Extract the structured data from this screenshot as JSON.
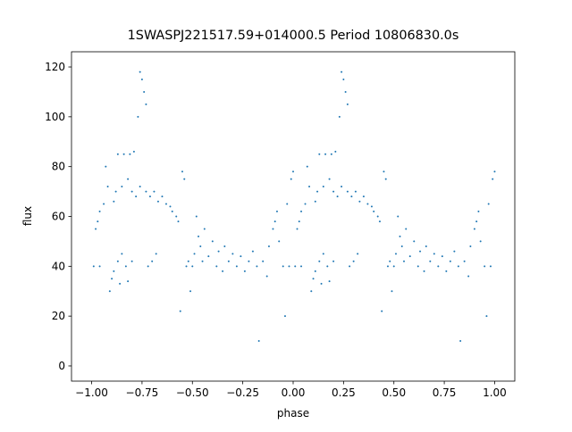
{
  "chart_data": {
    "type": "scatter",
    "title": "1SWASPJ221517.59+014000.5 Period 10806830.0s",
    "x_label": "phase",
    "y_label": "flux",
    "xlim": [
      -1.1,
      1.1
    ],
    "ylim": [
      -6.1,
      126.1
    ],
    "xticks": [
      {
        "value": -1.0,
        "label": "−1.00"
      },
      {
        "value": -0.75,
        "label": "−0.75"
      },
      {
        "value": -0.5,
        "label": "−0.50"
      },
      {
        "value": -0.25,
        "label": "−0.25"
      },
      {
        "value": 0.0,
        "label": "0.00"
      },
      {
        "value": 0.25,
        "label": "0.25"
      },
      {
        "value": 0.5,
        "label": "0.50"
      },
      {
        "value": 0.75,
        "label": "0.75"
      },
      {
        "value": 1.0,
        "label": "1.00"
      }
    ],
    "yticks": [
      0,
      20,
      40,
      60,
      80,
      100,
      120
    ],
    "grid": false,
    "series": [
      {
        "color": "#1f77b4",
        "x": [
          -0.99,
          -0.98,
          -0.97,
          -0.96,
          -0.96,
          -0.94,
          -0.93,
          -0.92,
          -0.91,
          -0.9,
          -0.89,
          -0.89,
          -0.88,
          -0.87,
          -0.87,
          -0.86,
          -0.85,
          -0.85,
          -0.84,
          -0.83,
          -0.82,
          -0.82,
          -0.81,
          -0.8,
          -0.8,
          -0.79,
          -0.78,
          -0.77,
          -0.76,
          -0.76,
          -0.75,
          -0.74,
          -0.73,
          -0.73,
          -0.72,
          -0.71,
          -0.7,
          -0.69,
          -0.68,
          -0.67,
          -0.65,
          -0.63,
          -0.61,
          -0.6,
          -0.58,
          -0.57,
          -0.56,
          -0.55,
          -0.54,
          -0.53,
          -0.52,
          -0.51,
          -0.5,
          -0.49,
          -0.48,
          -0.47,
          -0.46,
          -0.45,
          -0.44,
          -0.42,
          -0.4,
          -0.38,
          -0.37,
          -0.35,
          -0.34,
          -0.32,
          -0.3,
          -0.28,
          -0.26,
          -0.24,
          -0.22,
          -0.2,
          -0.18,
          -0.17,
          -0.15,
          -0.13,
          -0.12,
          -0.1,
          -0.09,
          -0.08,
          -0.07,
          -0.05,
          -0.04,
          -0.03,
          -0.02,
          -0.01,
          0.0,
          0.01,
          0.02,
          0.03,
          0.04,
          0.04,
          0.06,
          0.07,
          0.08,
          0.09,
          0.1,
          0.11,
          0.11,
          0.12,
          0.13,
          0.13,
          0.14,
          0.15,
          0.15,
          0.16,
          0.17,
          0.18,
          0.18,
          0.19,
          0.2,
          0.2,
          0.21,
          0.22,
          0.23,
          0.24,
          0.24,
          0.25,
          0.26,
          0.27,
          0.27,
          0.28,
          0.29,
          0.3,
          0.31,
          0.32,
          0.33,
          0.35,
          0.37,
          0.39,
          0.4,
          0.42,
          0.43,
          0.44,
          0.45,
          0.46,
          0.47,
          0.48,
          0.49,
          0.5,
          0.51,
          0.52,
          0.53,
          0.54,
          0.55,
          0.56,
          0.58,
          0.6,
          0.62,
          0.63,
          0.65,
          0.66,
          0.68,
          0.7,
          0.72,
          0.74,
          0.76,
          0.78,
          0.8,
          0.82,
          0.83,
          0.85,
          0.87,
          0.88,
          0.9,
          0.91,
          0.92,
          0.93,
          0.95,
          0.96,
          0.97,
          0.98,
          0.99,
          1.0
        ],
        "values": [
          40,
          55,
          58,
          62,
          40,
          65,
          80,
          72,
          30,
          35,
          38,
          66,
          70,
          85,
          42,
          33,
          72,
          45,
          85,
          40,
          75,
          34,
          85,
          70,
          42,
          86,
          68,
          100,
          118,
          72,
          115,
          110,
          105,
          70,
          40,
          68,
          42,
          70,
          45,
          66,
          68,
          65,
          64,
          62,
          60,
          58,
          22,
          78,
          75,
          40,
          42,
          30,
          40,
          45,
          60,
          52,
          48,
          42,
          55,
          44,
          50,
          40,
          46,
          38,
          48,
          42,
          45,
          40,
          44,
          38,
          42,
          46,
          40,
          10,
          42,
          36,
          48,
          55,
          58,
          62,
          50,
          40,
          20,
          65,
          40,
          75,
          78,
          40,
          55,
          58,
          62,
          40,
          65,
          80,
          72,
          30,
          35,
          38,
          66,
          70,
          85,
          42,
          33,
          72,
          45,
          85,
          40,
          75,
          34,
          85,
          70,
          42,
          86,
          68,
          100,
          118,
          72,
          115,
          110,
          105,
          70,
          40,
          68,
          42,
          70,
          45,
          66,
          68,
          65,
          64,
          62,
          60,
          58,
          22,
          78,
          75,
          40,
          42,
          30,
          40,
          45,
          60,
          52,
          48,
          42,
          55,
          44,
          50,
          40,
          46,
          38,
          48,
          42,
          45,
          40,
          44,
          38,
          42,
          46,
          40,
          10,
          42,
          36,
          48,
          55,
          58,
          62,
          50,
          40,
          20,
          65,
          40,
          75,
          78
        ]
      }
    ]
  }
}
